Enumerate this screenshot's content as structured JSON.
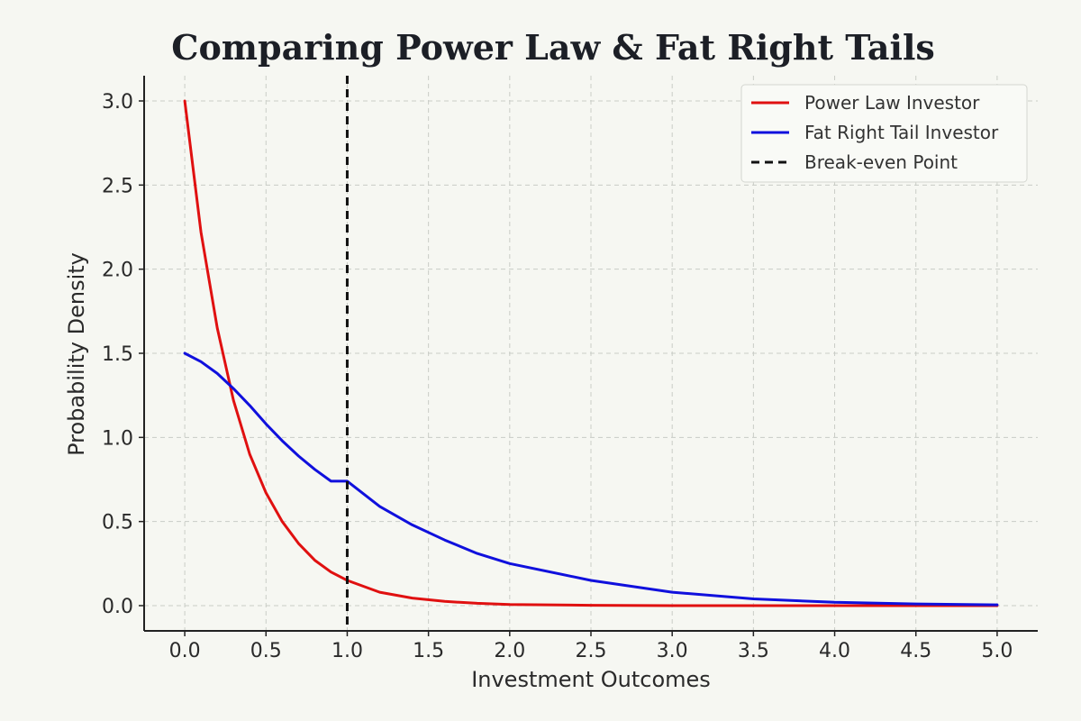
{
  "chart_data": {
    "type": "line",
    "title": "Comparing Power Law & Fat Right Tails",
    "xlabel": "Investment Outcomes",
    "ylabel": "Probability Density",
    "xlim": [
      -0.25,
      5.25
    ],
    "ylim": [
      -0.15,
      3.15
    ],
    "xticks": [
      0.0,
      0.5,
      1.0,
      1.5,
      2.0,
      2.5,
      3.0,
      3.5,
      4.0,
      4.5,
      5.0
    ],
    "yticks": [
      0.0,
      0.5,
      1.0,
      1.5,
      2.0,
      2.5,
      3.0
    ],
    "grid": true,
    "legend_position": "top-right",
    "series": [
      {
        "name": "Power Law Investor",
        "color": "#e01010",
        "x": [
          0.0,
          0.1,
          0.2,
          0.3,
          0.4,
          0.5,
          0.6,
          0.7,
          0.8,
          0.9,
          1.0,
          1.2,
          1.4,
          1.6,
          1.8,
          2.0,
          2.5,
          3.0,
          3.5,
          4.0,
          4.5,
          5.0
        ],
        "y": [
          3.0,
          2.22,
          1.65,
          1.22,
          0.9,
          0.67,
          0.5,
          0.37,
          0.27,
          0.2,
          0.15,
          0.08,
          0.045,
          0.025,
          0.014,
          0.007,
          0.002,
          0.0,
          0.0,
          0.0,
          0.0,
          0.0
        ]
      },
      {
        "name": "Fat Right Tail Investor",
        "color": "#1010dd",
        "x": [
          0.0,
          0.1,
          0.2,
          0.3,
          0.4,
          0.5,
          0.6,
          0.7,
          0.8,
          0.9,
          1.0,
          1.2,
          1.4,
          1.6,
          1.8,
          2.0,
          2.5,
          3.0,
          3.5,
          4.0,
          4.5,
          5.0
        ],
        "y": [
          1.5,
          1.45,
          1.38,
          1.29,
          1.19,
          1.08,
          0.98,
          0.89,
          0.81,
          0.74,
          0.74,
          0.59,
          0.48,
          0.39,
          0.31,
          0.25,
          0.15,
          0.08,
          0.04,
          0.02,
          0.01,
          0.005
        ]
      }
    ],
    "reference_lines": [
      {
        "name": "Break-even Point",
        "x": 1.0,
        "color": "#111111",
        "style": "dashed"
      }
    ]
  }
}
